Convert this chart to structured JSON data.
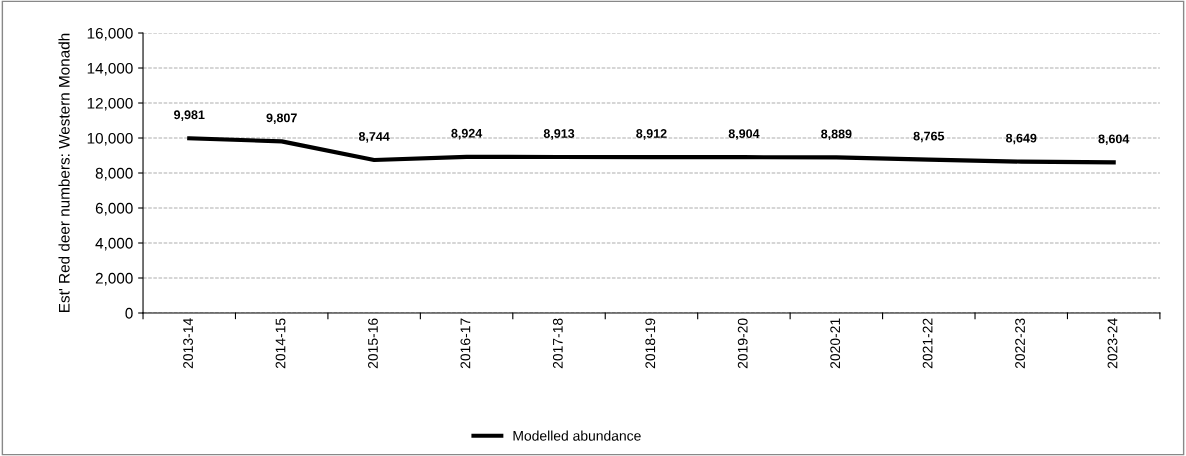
{
  "chart_data": {
    "type": "line",
    "ylabel": "Est' Red deer numbers: Western Monadh",
    "categories": [
      "2013-14",
      "2014-15",
      "2015-16",
      "2016-17",
      "2017-18",
      "2018-19",
      "2019-20",
      "2020-21",
      "2021-22",
      "2022-23",
      "2023-24"
    ],
    "series": [
      {
        "name": "Modelled abundance",
        "color": "#000000",
        "values": [
          9981,
          9807,
          8744,
          8924,
          8913,
          8912,
          8904,
          8889,
          8765,
          8649,
          8604
        ],
        "value_labels": [
          "9,981",
          "9,807",
          "8,744",
          "8,924",
          "8,913",
          "8,912",
          "8,904",
          "8,889",
          "8,765",
          "8,649",
          "8,604"
        ]
      }
    ],
    "ylim": [
      0,
      16000
    ],
    "yticks": [
      {
        "value": 0,
        "label": "0"
      },
      {
        "value": 2000,
        "label": "2,000"
      },
      {
        "value": 4000,
        "label": "4,000"
      },
      {
        "value": 6000,
        "label": "6,000"
      },
      {
        "value": 8000,
        "label": "8,000"
      },
      {
        "value": 10000,
        "label": "10,000"
      },
      {
        "value": 12000,
        "label": "12,000"
      },
      {
        "value": 14000,
        "label": "14,000"
      },
      {
        "value": 16000,
        "label": "16,000"
      }
    ],
    "grid": "y",
    "legend": "bottom",
    "marker": "none",
    "line_style": "solid"
  }
}
